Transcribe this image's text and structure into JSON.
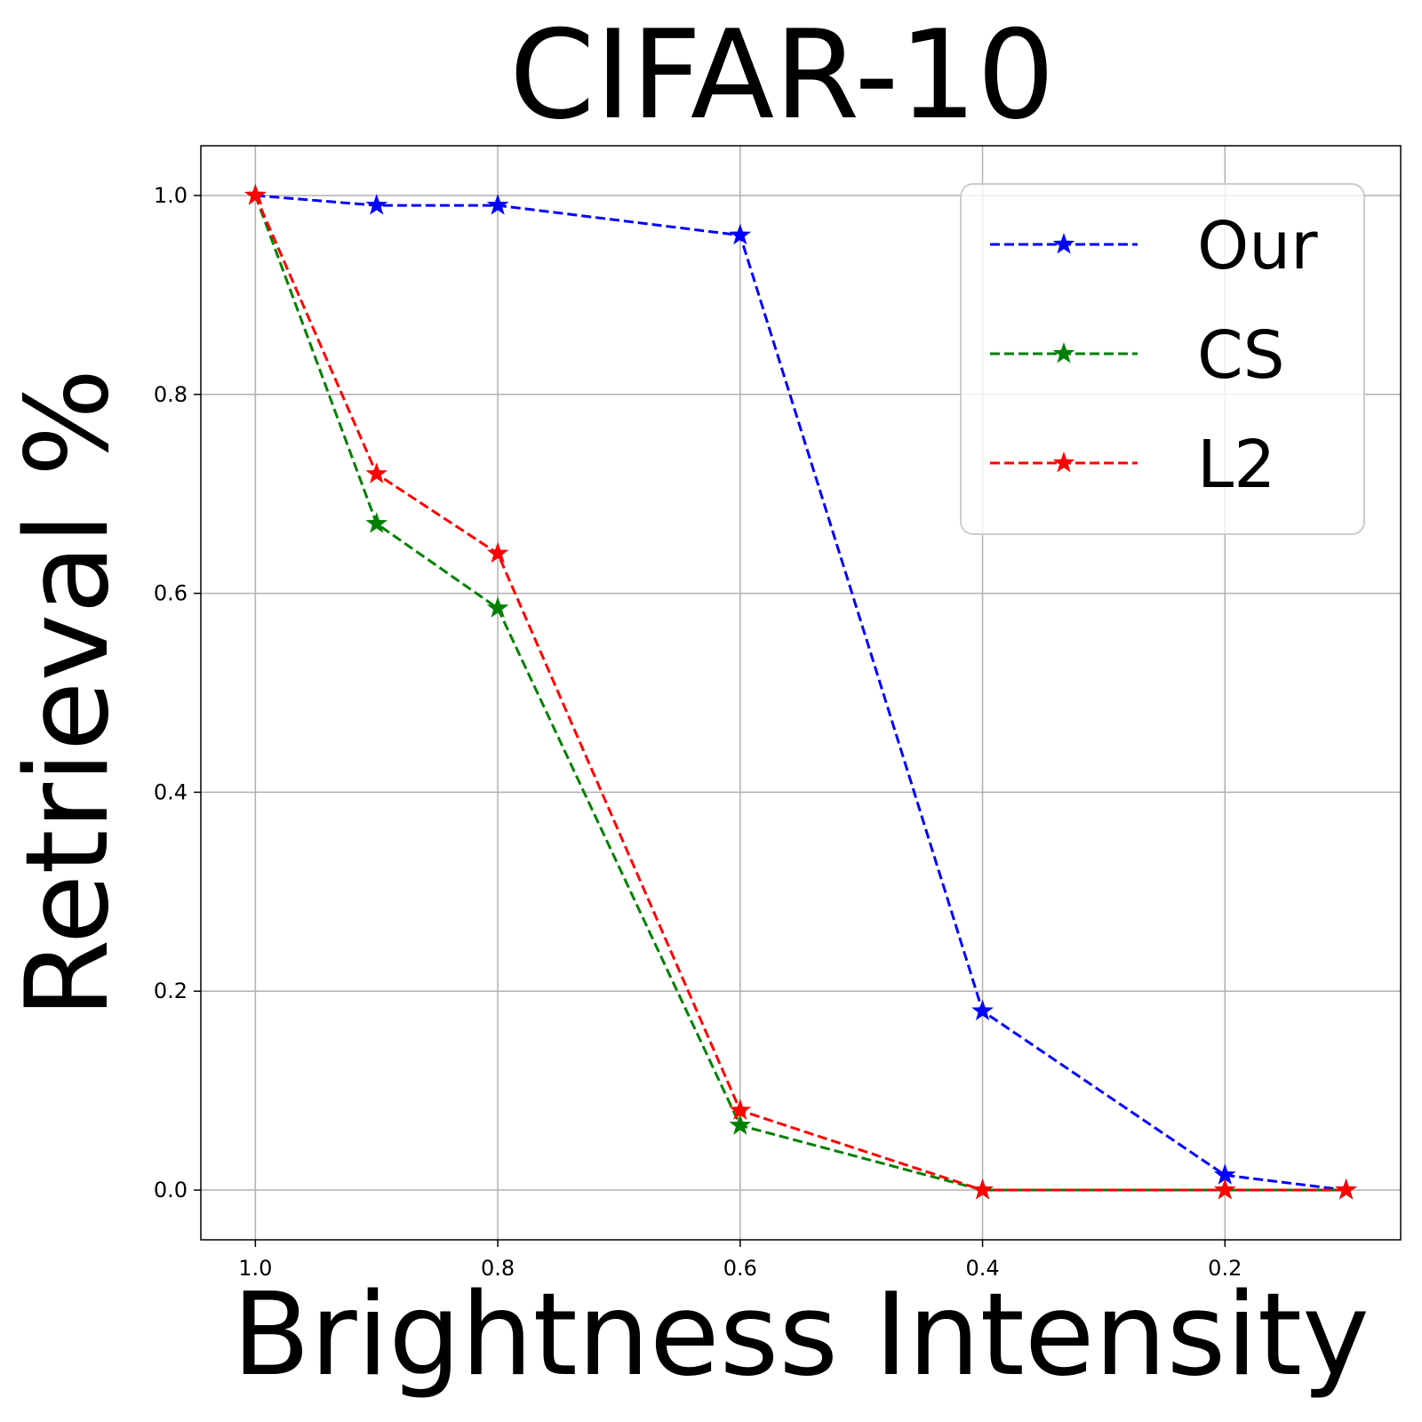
{
  "chart_data": {
    "type": "line",
    "title": "CIFAR-10",
    "xlabel": "Brightness Intensity",
    "ylabel": "Retrieval %",
    "x": [
      1.0,
      0.9,
      0.8,
      0.6,
      0.4,
      0.2,
      0.1
    ],
    "xlim": [
      1.045,
      0.055
    ],
    "ylim": [
      -0.05,
      1.05
    ],
    "xticks": [
      1.0,
      0.8,
      0.6,
      0.4,
      0.2
    ],
    "xtick_labels": [
      "1.0",
      "0.8",
      "0.6",
      "0.4",
      "0.2"
    ],
    "yticks": [
      0.0,
      0.2,
      0.4,
      0.6,
      0.8,
      1.0
    ],
    "ytick_labels": [
      "0.0",
      "0.2",
      "0.4",
      "0.6",
      "0.8",
      "1.0"
    ],
    "grid": true,
    "x_inverted": true,
    "legend_position": "upper-right",
    "line_style": "dashed",
    "marker": "star",
    "series": [
      {
        "name": "Our",
        "color": "#0000ff",
        "values": [
          1.0,
          0.99,
          0.99,
          0.96,
          0.18,
          0.015,
          0.0
        ]
      },
      {
        "name": "CS",
        "color": "#008000",
        "values": [
          1.0,
          0.67,
          0.585,
          0.065,
          0.0,
          0.0,
          0.0
        ]
      },
      {
        "name": "L2",
        "color": "#ff0000",
        "values": [
          1.0,
          0.72,
          0.64,
          0.08,
          0.0,
          0.0,
          0.0
        ]
      }
    ]
  }
}
